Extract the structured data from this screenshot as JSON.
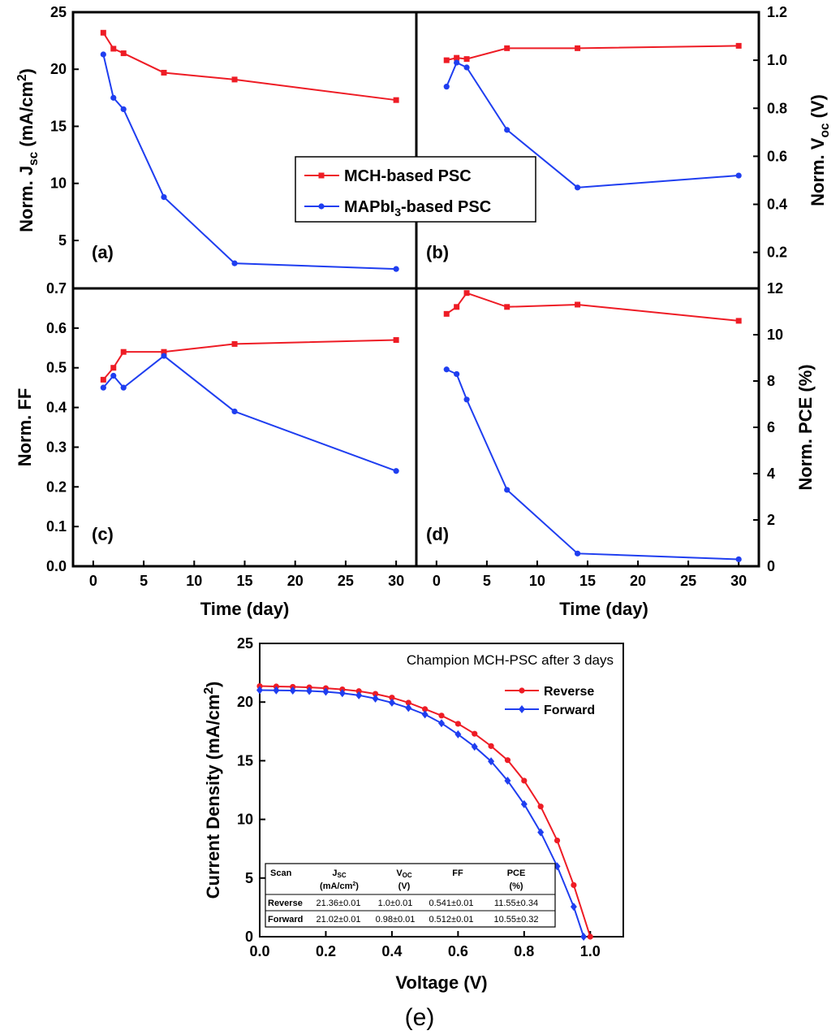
{
  "colors": {
    "mch": "#ee1c25",
    "mapbi": "#1f3ef0",
    "axis": "#000000"
  },
  "chart_data": [
    {
      "id": "a",
      "type": "line",
      "panel_label": "(a)",
      "ylabel": "Norm. Jsc (mA/cm2)",
      "ylabel_parts": [
        "Norm. J",
        "sc",
        " (mA/cm",
        "2",
        ")"
      ],
      "xlim": [
        -2,
        32
      ],
      "ylim": [
        0.8,
        25
      ],
      "yticks": [
        5,
        10,
        15,
        20,
        25
      ],
      "x": [
        1,
        2,
        3,
        7,
        14,
        30
      ],
      "series": [
        {
          "name": "MCH-based PSC",
          "marker": "square",
          "values": [
            23.2,
            21.8,
            21.4,
            19.7,
            19.1,
            17.3
          ]
        },
        {
          "name": "MAPbI3-based PSC",
          "marker": "circle",
          "values": [
            21.3,
            17.5,
            16.5,
            8.8,
            3.0,
            2.5
          ]
        }
      ]
    },
    {
      "id": "b",
      "type": "line",
      "panel_label": "(b)",
      "ylabel": "Norm. Voc (V)",
      "ylabel_parts": [
        "Norm. V",
        "oc",
        " (V)"
      ],
      "xlim": [
        -2,
        32
      ],
      "ylim": [
        0.05,
        1.2
      ],
      "yticks": [
        0.2,
        0.4,
        0.6,
        0.8,
        1.0,
        1.2
      ],
      "ytick_labels": [
        "0.2",
        "0.4",
        "0.6",
        "0.8",
        "1.0",
        "1.2"
      ],
      "x": [
        1,
        2,
        3,
        7,
        14,
        30
      ],
      "series": [
        {
          "name": "MCH-based PSC",
          "marker": "square",
          "values": [
            1.0,
            1.01,
            1.005,
            1.05,
            1.05,
            1.06
          ]
        },
        {
          "name": "MAPbI3-based PSC",
          "marker": "circle",
          "values": [
            0.89,
            0.99,
            0.97,
            0.71,
            0.47,
            0.52
          ]
        }
      ]
    },
    {
      "id": "c",
      "type": "line",
      "panel_label": "(c)",
      "ylabel": "Norm. FF",
      "xlabel": "Time (day)",
      "xlim": [
        -2,
        32
      ],
      "ylim": [
        0.0,
        0.7
      ],
      "xticks": [
        0,
        5,
        10,
        15,
        20,
        25,
        30
      ],
      "yticks": [
        0.0,
        0.1,
        0.2,
        0.3,
        0.4,
        0.5,
        0.6,
        0.7
      ],
      "ytick_labels": [
        "0.0",
        "0.1",
        "0.2",
        "0.3",
        "0.4",
        "0.5",
        "0.6",
        "0.7"
      ],
      "x": [
        1,
        2,
        3,
        7,
        14,
        30
      ],
      "series": [
        {
          "name": "MCH-based PSC",
          "marker": "square",
          "values": [
            0.47,
            0.5,
            0.54,
            0.54,
            0.56,
            0.57
          ]
        },
        {
          "name": "MAPbI3-based PSC",
          "marker": "circle",
          "values": [
            0.45,
            0.48,
            0.45,
            0.53,
            0.39,
            0.24
          ]
        }
      ]
    },
    {
      "id": "d",
      "type": "line",
      "panel_label": "(d)",
      "ylabel": "Norm. PCE (%)",
      "xlabel": "Time (day)",
      "xlim": [
        -2,
        32
      ],
      "ylim": [
        0,
        12
      ],
      "xticks": [
        0,
        5,
        10,
        15,
        20,
        25,
        30
      ],
      "yticks": [
        0,
        2,
        4,
        6,
        8,
        10,
        12
      ],
      "x": [
        1,
        2,
        3,
        7,
        14,
        30
      ],
      "series": [
        {
          "name": "MCH-based PSC",
          "marker": "square",
          "values": [
            10.9,
            11.2,
            11.8,
            11.2,
            11.3,
            10.6
          ]
        },
        {
          "name": "MAPbI3-based PSC",
          "marker": "circle",
          "values": [
            8.5,
            8.3,
            7.2,
            3.3,
            0.55,
            0.3
          ]
        }
      ]
    },
    {
      "id": "e",
      "type": "line",
      "panel_label": "(e)",
      "title": "Champion MCH-PSC after 3 days",
      "xlabel": "Voltage (V)",
      "ylabel": "Current Density (mA/cm2)",
      "ylabel_parts": [
        "Current Density (mA/cm",
        "2",
        ")"
      ],
      "xlim": [
        0.0,
        1.1
      ],
      "ylim": [
        0,
        25
      ],
      "xticks": [
        0.0,
        0.2,
        0.4,
        0.6,
        0.8,
        1.0
      ],
      "xtick_labels": [
        "0.0",
        "0.2",
        "0.4",
        "0.6",
        "0.8",
        "1.0"
      ],
      "yticks": [
        0,
        5,
        10,
        15,
        20,
        25
      ],
      "legend_position": "top-right",
      "series": [
        {
          "name": "Reverse",
          "marker": "circle",
          "x": [
            0.0,
            0.05,
            0.1,
            0.15,
            0.2,
            0.25,
            0.3,
            0.35,
            0.4,
            0.45,
            0.5,
            0.55,
            0.6,
            0.65,
            0.7,
            0.75,
            0.8,
            0.85,
            0.9,
            0.95,
            1.0
          ],
          "values": [
            21.36,
            21.33,
            21.3,
            21.25,
            21.18,
            21.08,
            20.93,
            20.7,
            20.38,
            19.95,
            19.4,
            18.85,
            18.15,
            17.3,
            16.25,
            15.05,
            13.3,
            11.1,
            8.2,
            4.4,
            0.0
          ]
        },
        {
          "name": "Forward",
          "marker": "diamond",
          "x": [
            0.0,
            0.05,
            0.1,
            0.15,
            0.2,
            0.25,
            0.3,
            0.35,
            0.4,
            0.45,
            0.5,
            0.55,
            0.6,
            0.65,
            0.7,
            0.75,
            0.8,
            0.85,
            0.9,
            0.95,
            0.98
          ],
          "values": [
            21.02,
            21.0,
            20.98,
            20.95,
            20.88,
            20.76,
            20.58,
            20.3,
            19.95,
            19.5,
            18.95,
            18.2,
            17.25,
            16.2,
            14.95,
            13.3,
            11.3,
            8.9,
            6.0,
            2.55,
            0.0
          ]
        }
      ],
      "table": {
        "header": [
          [
            "Scan",
            ""
          ],
          [
            "Jsc",
            "(mA/cm2)"
          ],
          [
            "Voc",
            "(V)"
          ],
          [
            "FF",
            ""
          ],
          [
            "PCE",
            "(%)"
          ]
        ],
        "rows": [
          [
            "Reverse",
            "21.36±0.01",
            "1.0±0.01",
            "0.541±0.01",
            "11.55±0.34"
          ],
          [
            "Forward",
            "21.02±0.01",
            "0.98±0.01",
            "0.512±0.01",
            "10.55±0.32"
          ]
        ]
      }
    }
  ],
  "shared_legend": {
    "entries": [
      {
        "label": "MCH-based PSC",
        "marker": "square"
      },
      {
        "label_parts": [
          "MAPbI",
          "3",
          "-based PSC"
        ],
        "label": "MAPbI3-based PSC",
        "marker": "circle"
      }
    ]
  }
}
